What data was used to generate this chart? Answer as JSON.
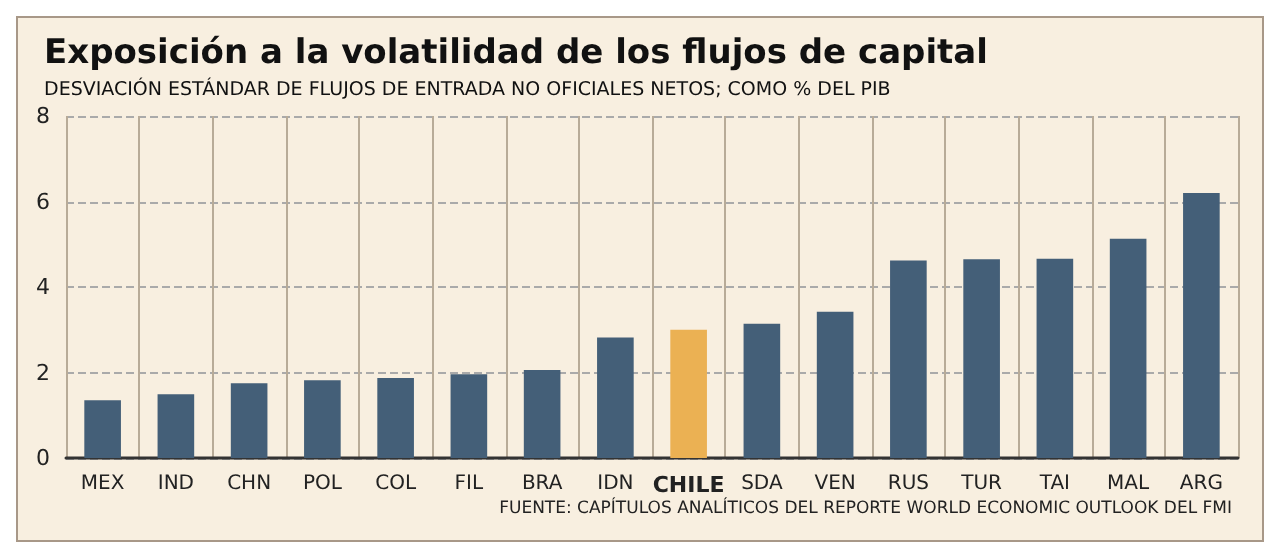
{
  "chart_data": {
    "type": "bar",
    "title": "Exposición a la volatilidad de los flujos de capital",
    "subtitle": "DESVIACIÓN ESTÁNDAR DE FLUJOS DE ENTRADA NO OFICIALES NETOS; COMO % DEL PIB",
    "categories": [
      "MEX",
      "IND",
      "CHN",
      "POL",
      "COL",
      "FIL",
      "BRA",
      "IDN",
      "CHILE",
      "SDA",
      "VEN",
      "RUS",
      "TUR",
      "TAI",
      "MAL",
      "ARG"
    ],
    "values": [
      1.35,
      1.49,
      1.75,
      1.82,
      1.87,
      1.96,
      2.06,
      2.82,
      3.0,
      3.14,
      3.42,
      4.62,
      4.65,
      4.66,
      5.13,
      6.2
    ],
    "colors": [
      "#445f78",
      "#445f78",
      "#445f78",
      "#445f78",
      "#445f78",
      "#445f78",
      "#445f78",
      "#445f78",
      "#ebb153",
      "#445f78",
      "#445f78",
      "#445f78",
      "#445f78",
      "#445f78",
      "#445f78",
      "#445f78"
    ],
    "ylim": [
      0,
      8
    ],
    "yticks": [
      0,
      2,
      4,
      6,
      8
    ],
    "grid": true,
    "annotations": [
      "FUENTE: CAPÍTULOS ANALÍTICOS DEL REPORTE WORLD ECONOMIC OUTLOOK DEL FMI"
    ]
  }
}
